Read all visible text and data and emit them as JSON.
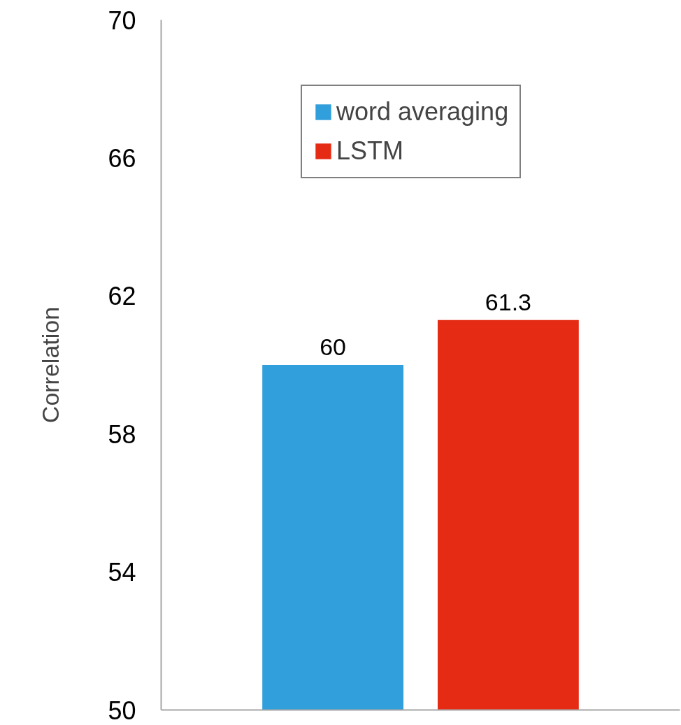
{
  "chart_data": {
    "type": "bar",
    "ylabel": "Correlation",
    "categories": [
      null
    ],
    "series": [
      {
        "name": "word averaging",
        "color": "#319fdc",
        "values": [
          60
        ]
      },
      {
        "name": "LSTM",
        "color": "#e52b14",
        "values": [
          61.3
        ]
      }
    ],
    "ylim": [
      50,
      70
    ],
    "yticks": [
      50,
      54,
      58,
      62,
      66,
      70
    ],
    "data_labels": true,
    "grid": false,
    "legend": "top right"
  }
}
